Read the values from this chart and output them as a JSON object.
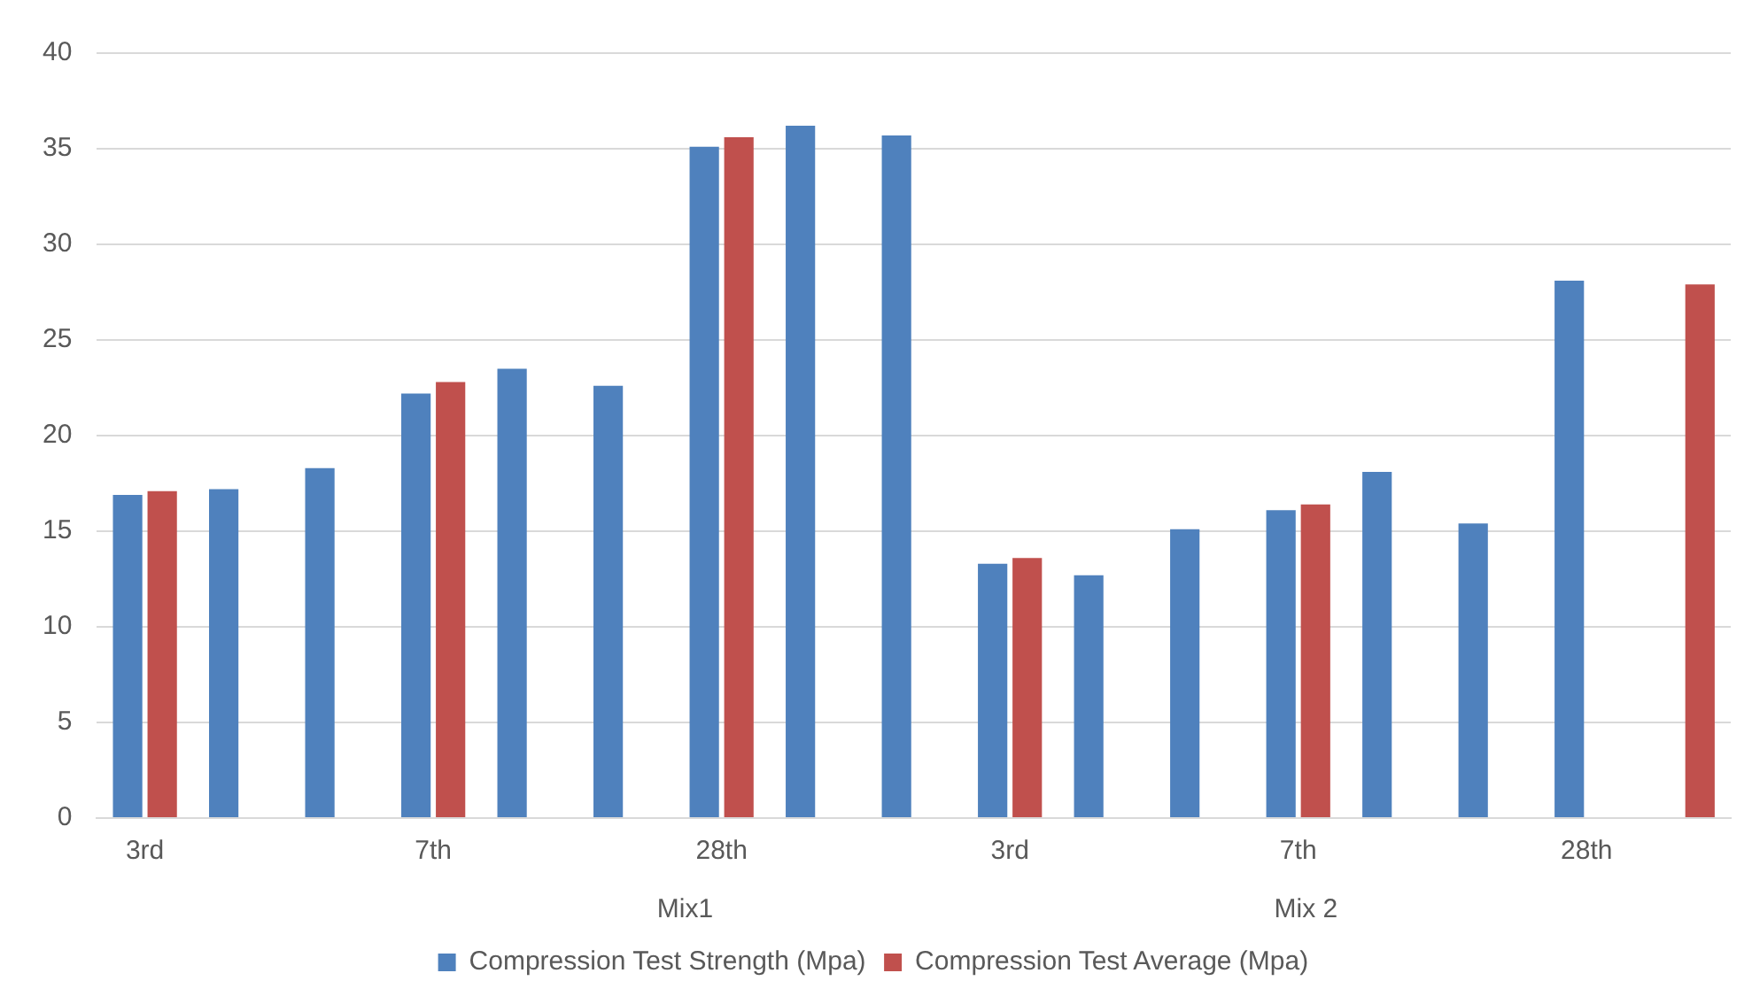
{
  "chart_data": {
    "type": "bar",
    "categories": [
      "3rd",
      null,
      null,
      "7th",
      null,
      null,
      "28th",
      null,
      null,
      "3rd",
      null,
      null,
      "7th",
      null,
      null,
      "28th",
      null
    ],
    "series": [
      {
        "name": "Compression Test Strength (Mpa)",
        "color": "#4f81bd",
        "values": [
          16.9,
          17.2,
          18.3,
          22.2,
          23.5,
          22.6,
          35.1,
          36.2,
          35.7,
          13.3,
          12.7,
          15.1,
          16.1,
          18.1,
          15.4,
          28.1,
          null
        ]
      },
      {
        "name": "Compression Test Average (Mpa)",
        "color": "#c0504d",
        "values": [
          17.1,
          null,
          null,
          22.8,
          null,
          null,
          35.6,
          null,
          null,
          13.6,
          null,
          null,
          16.4,
          null,
          null,
          null,
          27.9
        ]
      }
    ],
    "ylim": [
      0,
      40
    ],
    "yticks": [
      0,
      5,
      10,
      15,
      20,
      25,
      30,
      35,
      40
    ],
    "annotations": [
      "Mix1",
      "Mix 2"
    ],
    "grid": "y",
    "legend": "bottom"
  }
}
